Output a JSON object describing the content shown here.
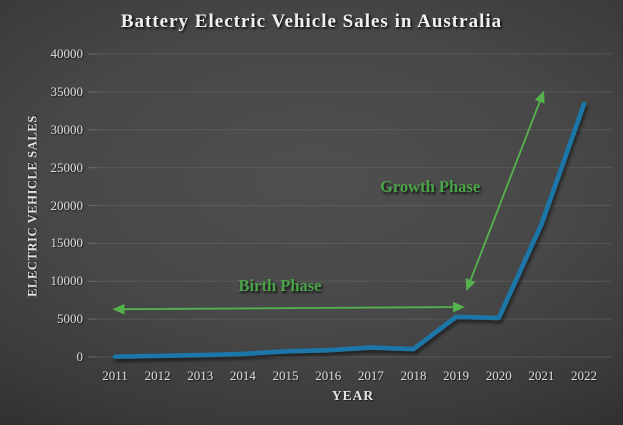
{
  "title": "Battery Electric Vehicle Sales in Australia",
  "chart_data": {
    "type": "line",
    "title": "Battery Electric Vehicle Sales in Australia",
    "xlabel": "YEAR",
    "ylabel": "ELECTRIC VEHICLE SALES",
    "x": [
      2011,
      2012,
      2013,
      2014,
      2015,
      2016,
      2017,
      2018,
      2019,
      2020,
      2021,
      2022
    ],
    "series": [
      {
        "name": "Battery electric vehicle sales",
        "values": [
          50,
          150,
          250,
          400,
          750,
          900,
          1250,
          1050,
          5300,
          5150,
          17500,
          33400
        ]
      }
    ],
    "ylim": [
      0,
      40000
    ],
    "ytick_step": 5000,
    "grid": true,
    "legend": false,
    "annotations": [
      {
        "id": "birth",
        "label": "Birth Phase",
        "arrow": "double",
        "x1": 2011.0,
        "y1": 6300,
        "x2": 2019.15,
        "y2": 6600,
        "label_x": 2014.87,
        "label_y": 9400
      },
      {
        "id": "growth",
        "label": "Growth Phase",
        "arrow": "double",
        "x1": 2019.26,
        "y1": 9000,
        "x2": 2021.04,
        "y2": 34850,
        "label_x": 2018.39,
        "label_y": 22450
      }
    ]
  },
  "colors": {
    "line": "#1d76a8",
    "annotation_arrow": "#55b24c",
    "annotation_text": "#4aa348",
    "title_text": "#f0f0f0",
    "axis_text": "#dedede",
    "gridline": "#6a6a6a"
  }
}
